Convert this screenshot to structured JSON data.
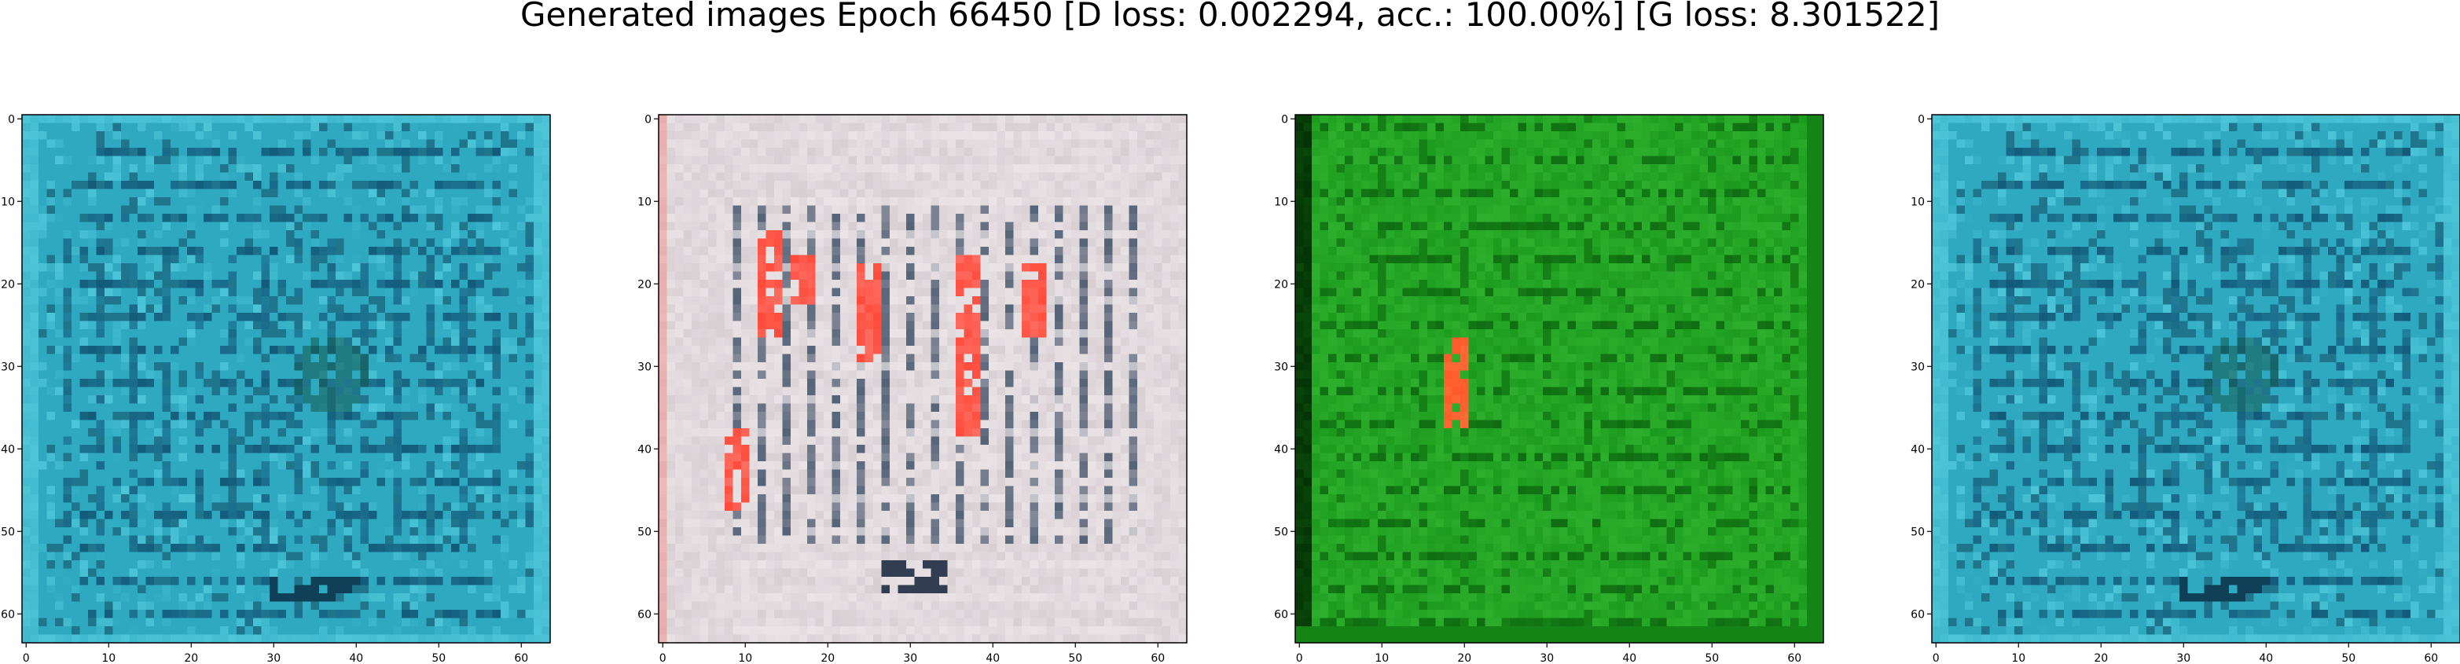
{
  "title": "Generated images Epoch 66450 [D loss: 0.002294, acc.: 100.00%] [G loss: 8.301522]",
  "panels": [
    {
      "name": "panel-1",
      "theme": "teal",
      "colors": {
        "base": "#2ea9c0",
        "light": "#5fd6e6",
        "dark": "#0f4f70",
        "deep": "#08263e",
        "accent": "#155f58"
      },
      "xticks": [
        "0",
        "10",
        "20",
        "30",
        "40",
        "50",
        "60"
      ],
      "yticks": [
        "0",
        "10",
        "20",
        "30",
        "40",
        "50",
        "60"
      ]
    },
    {
      "name": "panel-2",
      "theme": "pale",
      "colors": {
        "base": "#d8cfd3",
        "light": "#f3eef0",
        "dark": "#3d4f66",
        "deep": "#15233a",
        "accent": "#ff4a3a"
      },
      "xticks": [
        "0",
        "10",
        "20",
        "30",
        "40",
        "50",
        "60"
      ],
      "yticks": [
        "0",
        "10",
        "20",
        "30",
        "40",
        "50",
        "60"
      ]
    },
    {
      "name": "panel-3",
      "theme": "green",
      "colors": {
        "base": "#1b9a1d",
        "light": "#3fc23b",
        "dark": "#0a5a0b",
        "deep": "#032d03",
        "accent": "#ff5a2a"
      },
      "xticks": [
        "0",
        "10",
        "20",
        "30",
        "40",
        "50",
        "60"
      ],
      "yticks": [
        "0",
        "10",
        "20",
        "30",
        "40",
        "50",
        "60"
      ]
    },
    {
      "name": "panel-4",
      "theme": "teal",
      "colors": {
        "base": "#2ea9c0",
        "light": "#5fd6e6",
        "dark": "#0f4f70",
        "deep": "#08263e",
        "accent": "#155f58"
      },
      "xticks": [
        "0",
        "10",
        "20",
        "30",
        "40",
        "50",
        "60"
      ],
      "yticks": [
        "0",
        "10",
        "20",
        "30",
        "40",
        "50",
        "60"
      ]
    }
  ]
}
